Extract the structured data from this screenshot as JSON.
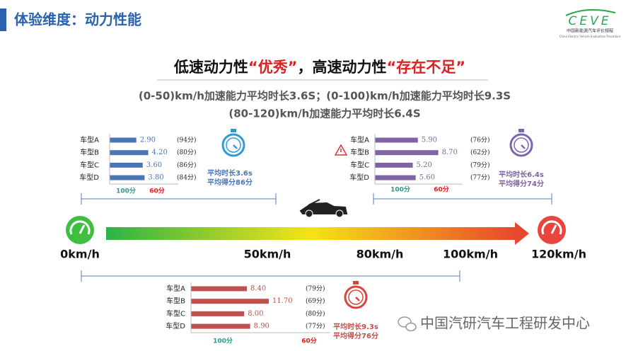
{
  "header": {
    "title": "体验维度：动力性能",
    "logo": "CEVE",
    "logo_sub": "中国新能源汽车评价规程",
    "logo_sub_en": "China Electric Vehicle Evaluation Procedure"
  },
  "headline": {
    "part1": "低速动力性",
    "part2": "“优秀”",
    "part3": "，高速动力性",
    "part4": "“存在不足”"
  },
  "summary": [
    "(0-50)km/h加速能力平均时长3.6S；(0-100)km/h加速能力平均时长9.3S",
    "(80-120)km/h加速能力平均时长6.4S"
  ],
  "speed_labels": [
    "0km/h",
    "50km/h",
    "80km/h",
    "100km/h",
    "120km/h"
  ],
  "panels": [
    {
      "categories": [
        "车型A",
        "车型B",
        "车型C",
        "车型D"
      ],
      "values": [
        2.9,
        4.2,
        3.6,
        3.8
      ],
      "value_labels": [
        "2.90",
        "4.20",
        "3.60",
        "3.80"
      ],
      "scores": [
        "(94分)",
        "(80分)",
        "(86分)",
        "(84分)"
      ],
      "scale_labels": [
        "100分",
        "60分"
      ],
      "avg_time": "平均时长3.6s",
      "avg_score": "平均得分86分",
      "color": "#4a76b5"
    },
    {
      "categories": [
        "车型A",
        "车型B",
        "车型C",
        "车型D"
      ],
      "values": [
        5.9,
        8.7,
        5.2,
        5.6
      ],
      "value_labels": [
        "5.90",
        "8.70",
        "5.20",
        "5.60"
      ],
      "scores": [
        "(76分)",
        "(62分)",
        "(79分)",
        "(77分)"
      ],
      "scale_labels": [
        "100分",
        "60分"
      ],
      "avg_time": "平均时长6.4s",
      "avg_score": "平均得分74分",
      "color": "#8064a2"
    },
    {
      "categories": [
        "车型A",
        "车型B",
        "车型C",
        "车型D"
      ],
      "values": [
        8.4,
        11.7,
        8.0,
        8.9
      ],
      "value_labels": [
        "8.40",
        "11.70",
        "8.00",
        "8.90"
      ],
      "scores": [
        "(79分)",
        "(69分)",
        "(80分)",
        "(77分)"
      ],
      "scale_labels": [
        "100分",
        "60分"
      ],
      "avg_time": "平均时长9.3s",
      "avg_score": "平均得分76分",
      "color": "#c0504d"
    }
  ],
  "footer": "中国汽研汽车工程研发中心"
}
